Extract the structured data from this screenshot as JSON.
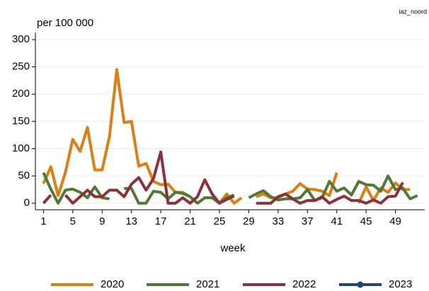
{
  "chart_data": {
    "type": "line",
    "title": "iaz_noord",
    "ylabel": "per 100 000",
    "xlabel": "week",
    "x": [
      1,
      2,
      3,
      4,
      5,
      6,
      7,
      8,
      9,
      10,
      11,
      12,
      13,
      14,
      15,
      16,
      17,
      18,
      19,
      20,
      21,
      22,
      23,
      24,
      25,
      26,
      27,
      28,
      29,
      30,
      31,
      32,
      33,
      34,
      35,
      36,
      37,
      38,
      39,
      40,
      41,
      42,
      43,
      44,
      45,
      46,
      47,
      48,
      49,
      50,
      51,
      52
    ],
    "series": [
      {
        "name": "2020",
        "color": "#e07d10",
        "values": [
          36,
          67,
          14,
          57,
          117,
          95,
          139,
          61,
          61,
          122,
          245,
          148,
          150,
          68,
          73,
          40,
          34,
          35,
          20,
          20,
          12,
          null,
          null,
          null,
          0,
          17,
          0,
          10,
          null,
          12,
          17,
          10,
          10,
          17,
          22,
          36,
          26,
          25,
          22,
          14,
          56,
          null,
          null,
          0,
          30,
          5,
          28,
          20,
          37,
          25,
          25,
          null
        ]
      },
      {
        "name": "2021",
        "color": "#4e7a34",
        "values": [
          56,
          26,
          0,
          24,
          26,
          20,
          10,
          30,
          10,
          8,
          null,
          27,
          27,
          0,
          0,
          22,
          20,
          8,
          20,
          18,
          12,
          0,
          10,
          10,
          0,
          10,
          15,
          null,
          10,
          17,
          23,
          12,
          6,
          8,
          8,
          10,
          25,
          5,
          10,
          40,
          22,
          28,
          15,
          40,
          34,
          33,
          22,
          50,
          25,
          28,
          8,
          14
        ]
      },
      {
        "name": "2022",
        "color": "#8c3139",
        "values": [
          0,
          15,
          null,
          15,
          0,
          12,
          24,
          12,
          12,
          24,
          24,
          12,
          35,
          47,
          24,
          45,
          94,
          0,
          0,
          10,
          0,
          12,
          43,
          17,
          0,
          7,
          13,
          null,
          null,
          0,
          0,
          0,
          12,
          17,
          8,
          0,
          5,
          5,
          12,
          0,
          7,
          13,
          5,
          5,
          0,
          6,
          0,
          12,
          13,
          38,
          null,
          null
        ]
      },
      {
        "name": "2023",
        "color": "#1a4a7a",
        "marker": true,
        "values": [
          null,
          null,
          null,
          null,
          null,
          null,
          null,
          null,
          null,
          null,
          null,
          null,
          null,
          null,
          null,
          null,
          null,
          null,
          null,
          null,
          null,
          null,
          null,
          null,
          null,
          null,
          null,
          null,
          null,
          null,
          null,
          null,
          null,
          null,
          null,
          null,
          null,
          null,
          null,
          null,
          null,
          null,
          null,
          null,
          null,
          null,
          null,
          null,
          null,
          null,
          null,
          null
        ]
      }
    ],
    "xlim": [
      -0.1,
      53
    ],
    "xticks": [
      1,
      5,
      9,
      13,
      17,
      21,
      25,
      29,
      33,
      37,
      41,
      45,
      49
    ],
    "ylim": [
      -12,
      313
    ],
    "yticks": [
      0,
      50,
      100,
      150,
      200,
      250,
      300
    ],
    "grid": true,
    "legend": "bottom"
  }
}
